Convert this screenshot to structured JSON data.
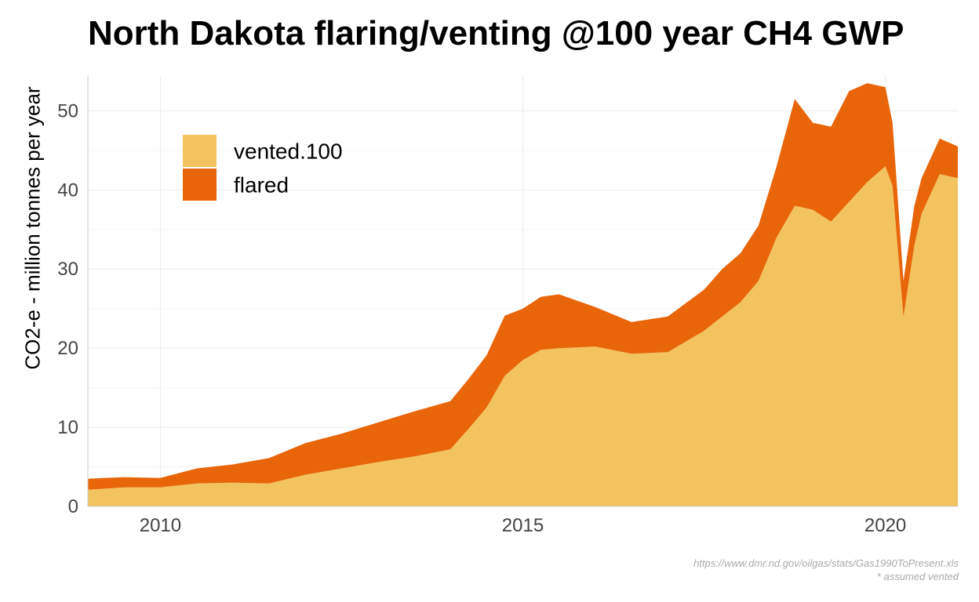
{
  "chart_data": {
    "type": "area",
    "stacked": true,
    "title": "North Dakota flaring/venting @100 year CH4 GWP",
    "ylabel": "CO2-e - million tonnes per year",
    "xlabel": "",
    "xlim": [
      2009.0,
      2021.0
    ],
    "ylim": [
      0,
      54.5
    ],
    "x_ticks": [
      2010,
      2015,
      2020
    ],
    "y_ticks": [
      0,
      10,
      20,
      30,
      40,
      50
    ],
    "grid": true,
    "legend_position": "top-left",
    "series": [
      {
        "name": "vented.100",
        "color": "#F2C35E",
        "x": [
          2009.0,
          2009.5,
          2010.0,
          2010.5,
          2011.0,
          2011.5,
          2012.0,
          2012.5,
          2013.0,
          2013.5,
          2014.0,
          2014.25,
          2014.5,
          2014.75,
          2015.0,
          2015.25,
          2015.5,
          2016.0,
          2016.5,
          2017.0,
          2017.5,
          2017.75,
          2018.0,
          2018.25,
          2018.5,
          2018.75,
          2019.0,
          2019.25,
          2019.5,
          2019.75,
          2020.0,
          2020.1,
          2020.25,
          2020.4,
          2020.5,
          2020.75,
          2021.0
        ],
        "y": [
          2.1,
          2.4,
          2.4,
          2.9,
          3.0,
          2.9,
          4.0,
          4.8,
          5.6,
          6.3,
          7.2,
          9.8,
          12.5,
          16.5,
          18.5,
          19.8,
          20.0,
          20.2,
          19.3,
          19.5,
          22.2,
          24.0,
          25.8,
          28.5,
          34.0,
          38.0,
          37.5,
          36.0,
          38.5,
          41.0,
          43.0,
          40.5,
          24.0,
          33.0,
          37.0,
          42.0,
          41.5
        ]
      },
      {
        "name": "flared",
        "color": "#E8650A",
        "x": [
          2009.0,
          2009.5,
          2010.0,
          2010.5,
          2011.0,
          2011.5,
          2012.0,
          2012.5,
          2013.0,
          2013.5,
          2014.0,
          2014.25,
          2014.5,
          2014.75,
          2015.0,
          2015.25,
          2015.5,
          2016.0,
          2016.5,
          2017.0,
          2017.5,
          2017.75,
          2018.0,
          2018.25,
          2018.5,
          2018.75,
          2019.0,
          2019.25,
          2019.5,
          2019.75,
          2020.0,
          2020.1,
          2020.25,
          2020.4,
          2020.5,
          2020.75,
          2021.0
        ],
        "y": [
          1.4,
          1.3,
          1.2,
          1.9,
          2.3,
          3.2,
          4.0,
          4.4,
          5.0,
          5.7,
          6.1,
          6.3,
          6.6,
          7.6,
          6.5,
          6.7,
          6.8,
          5.0,
          4.0,
          4.5,
          5.2,
          6.0,
          6.2,
          7.0,
          9.0,
          13.5,
          11.0,
          12.0,
          14.0,
          12.5,
          10.0,
          8.0,
          4.5,
          5.0,
          4.5,
          4.5,
          4.0
        ]
      }
    ]
  },
  "caption": {
    "source": "https://www.dmr.nd.gov/oilgas/stats/Gas1990ToPresent.xls",
    "note": "* assumed vented"
  }
}
